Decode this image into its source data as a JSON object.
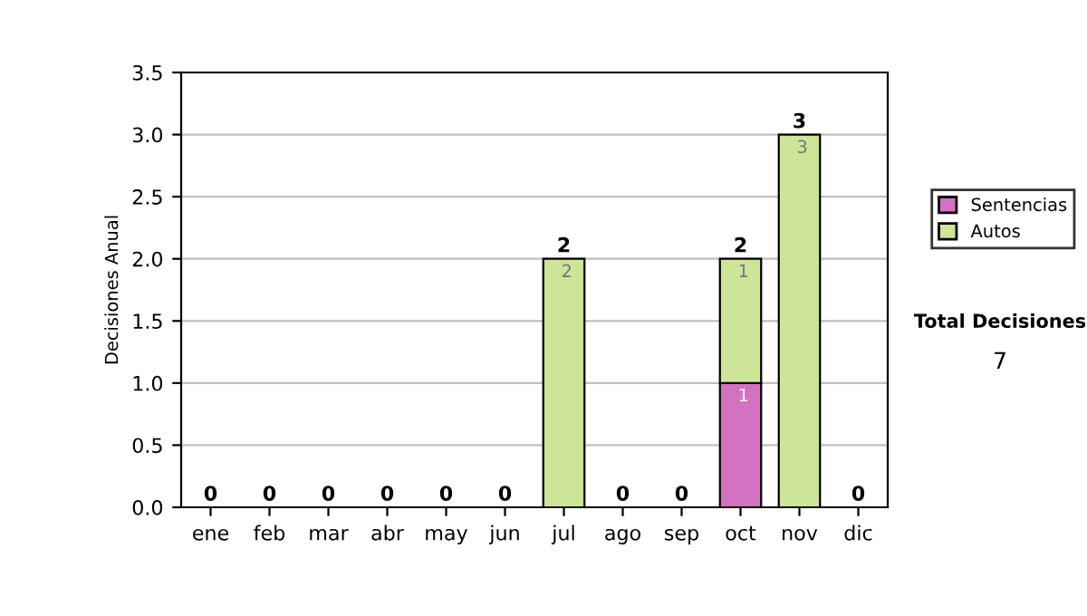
{
  "chart_data": {
    "type": "bar",
    "stacked": true,
    "ylabel": "Decisiones Anual",
    "categories": [
      "ene",
      "feb",
      "mar",
      "abr",
      "may",
      "jun",
      "jul",
      "ago",
      "sep",
      "oct",
      "nov",
      "dic"
    ],
    "series": [
      {
        "name": "Sentencias",
        "color": "#d472c2",
        "values": [
          0,
          0,
          0,
          0,
          0,
          0,
          0,
          0,
          0,
          1,
          0,
          0
        ],
        "value_labels": [
          null,
          null,
          null,
          null,
          null,
          null,
          null,
          null,
          null,
          "1",
          null,
          null
        ]
      },
      {
        "name": "Autos",
        "color": "#cde596",
        "values": [
          0,
          0,
          0,
          0,
          0,
          0,
          2,
          0,
          0,
          1,
          3,
          0
        ],
        "value_labels": [
          null,
          null,
          null,
          null,
          null,
          null,
          "2",
          null,
          null,
          "1",
          "3",
          null
        ]
      }
    ],
    "totals": [
      "0",
      "0",
      "0",
      "0",
      "0",
      "0",
      "2",
      "0",
      "0",
      "2",
      "3",
      "0"
    ],
    "ylim": [
      0,
      3.5
    ],
    "yticks": [
      {
        "value": 0,
        "label": "0.0"
      },
      {
        "value": 0.5,
        "label": "0.5"
      },
      {
        "value": 1,
        "label": "1.0"
      },
      {
        "value": 1.5,
        "label": "1.5"
      },
      {
        "value": 2,
        "label": "2.0"
      },
      {
        "value": 2.5,
        "label": "2.5"
      },
      {
        "value": 3,
        "label": "3.0"
      },
      {
        "value": 3.5,
        "label": "3.5"
      }
    ],
    "grid": "y",
    "legend": "right",
    "annotations": [
      "Total Decisiones",
      "7"
    ]
  }
}
